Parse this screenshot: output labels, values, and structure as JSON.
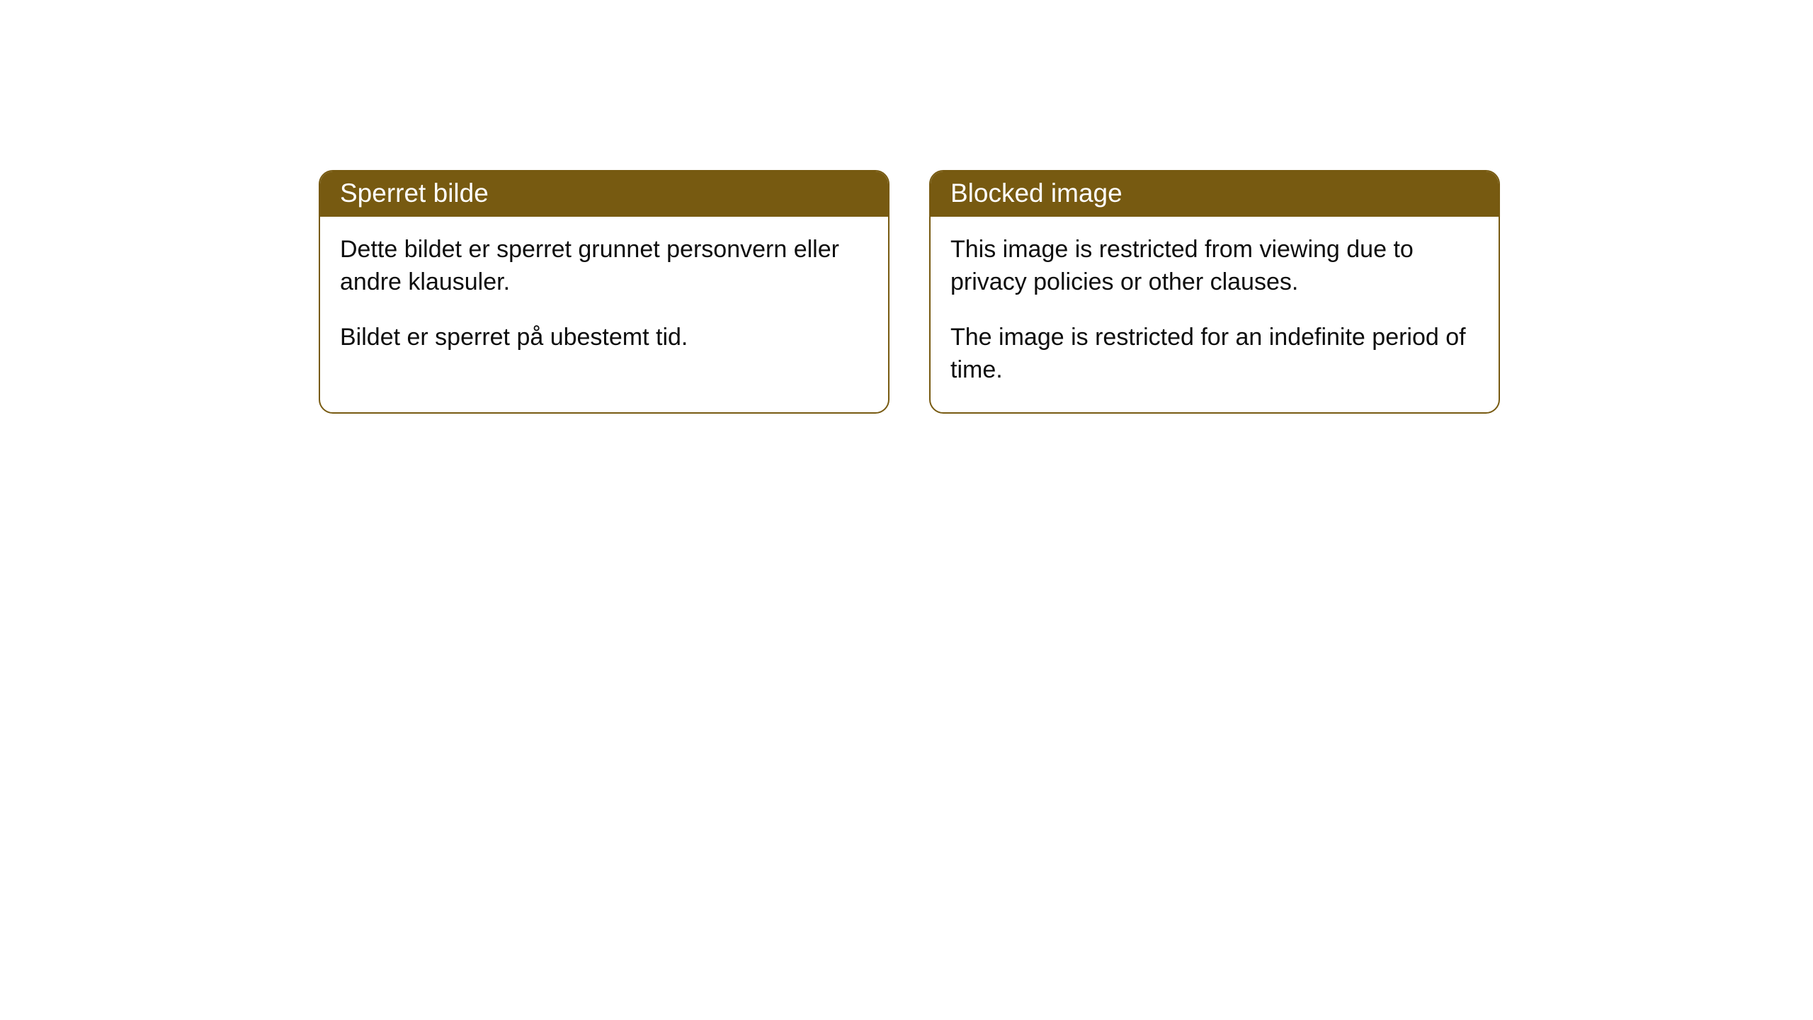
{
  "cards": [
    {
      "title": "Sperret bilde",
      "paragraph1": "Dette bildet er sperret grunnet personvern eller andre klausuler.",
      "paragraph2": "Bildet er sperret på ubestemt tid."
    },
    {
      "title": "Blocked image",
      "paragraph1": "This image is restricted from viewing due to privacy policies or other clauses.",
      "paragraph2": "The image is restricted for an indefinite period of time."
    }
  ],
  "styling": {
    "header_bg_color": "#775a11",
    "header_text_color": "#ffffff",
    "border_color": "#775a11",
    "body_text_color": "#0d0d0d",
    "background_color": "#ffffff",
    "border_radius": 20,
    "header_fontsize": 37,
    "body_fontsize": 34
  }
}
